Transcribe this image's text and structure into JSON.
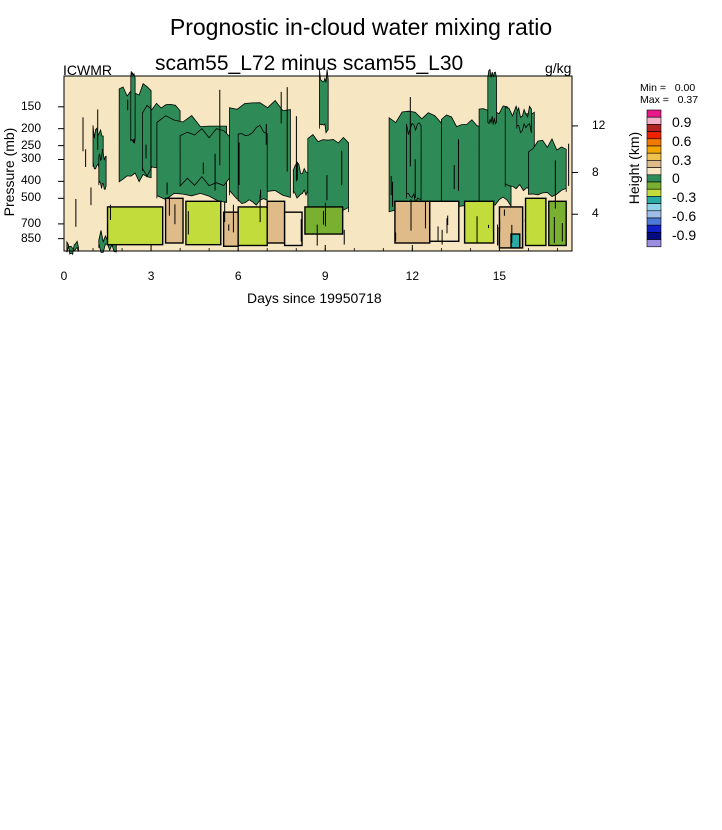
{
  "chart_data": {
    "type": "heatmap",
    "title": "Prognostic in-cloud water mixing ratio",
    "subtitle": "scam55_L72 minus scam55_L30",
    "left_string": "ICWMR",
    "right_string": "g/kg",
    "xlabel": "Days since 19950718",
    "ylabel": "Pressure (mb)",
    "ylabel_right": "Height (km)",
    "x_ticks": [
      "0",
      "3",
      "6",
      "9",
      "12",
      "15"
    ],
    "x_tick_values": [
      0,
      3,
      6,
      9,
      12,
      15
    ],
    "xlim": [
      0,
      17.5
    ],
    "y_ticks": [
      "150",
      "200",
      "250",
      "300",
      "400",
      "500",
      "700",
      "850"
    ],
    "y_tick_values": [
      150,
      200,
      250,
      300,
      400,
      500,
      700,
      850
    ],
    "ylim": [
      100,
      1000
    ],
    "y_scale": "log-pressure",
    "y_right_ticks": [
      "4",
      "8",
      "12"
    ],
    "y_right_tick_values": [
      4,
      8,
      12
    ],
    "min_label": "Min =   0.00",
    "max_label": "Max =   0.37",
    "colorbar": {
      "labels": [
        "0.9",
        "0.6",
        "0.3",
        "0",
        "-0.3",
        "-0.6",
        "-0.9"
      ],
      "colors": [
        "#e8178a",
        "#f3b0c8",
        "#b22222",
        "#ee2200",
        "#f27a00",
        "#f4a600",
        "#f1c24e",
        "#e0bb8a",
        "#f6e6c2",
        "#2e8b57",
        "#7ab030",
        "#c2dc3c",
        "#2aaaa4",
        "#8fd3e8",
        "#9ebee8",
        "#4d7ad8",
        "#1020c8",
        "#050b80",
        "#9b8ee0"
      ],
      "background": "#f6e6c2"
    }
  }
}
